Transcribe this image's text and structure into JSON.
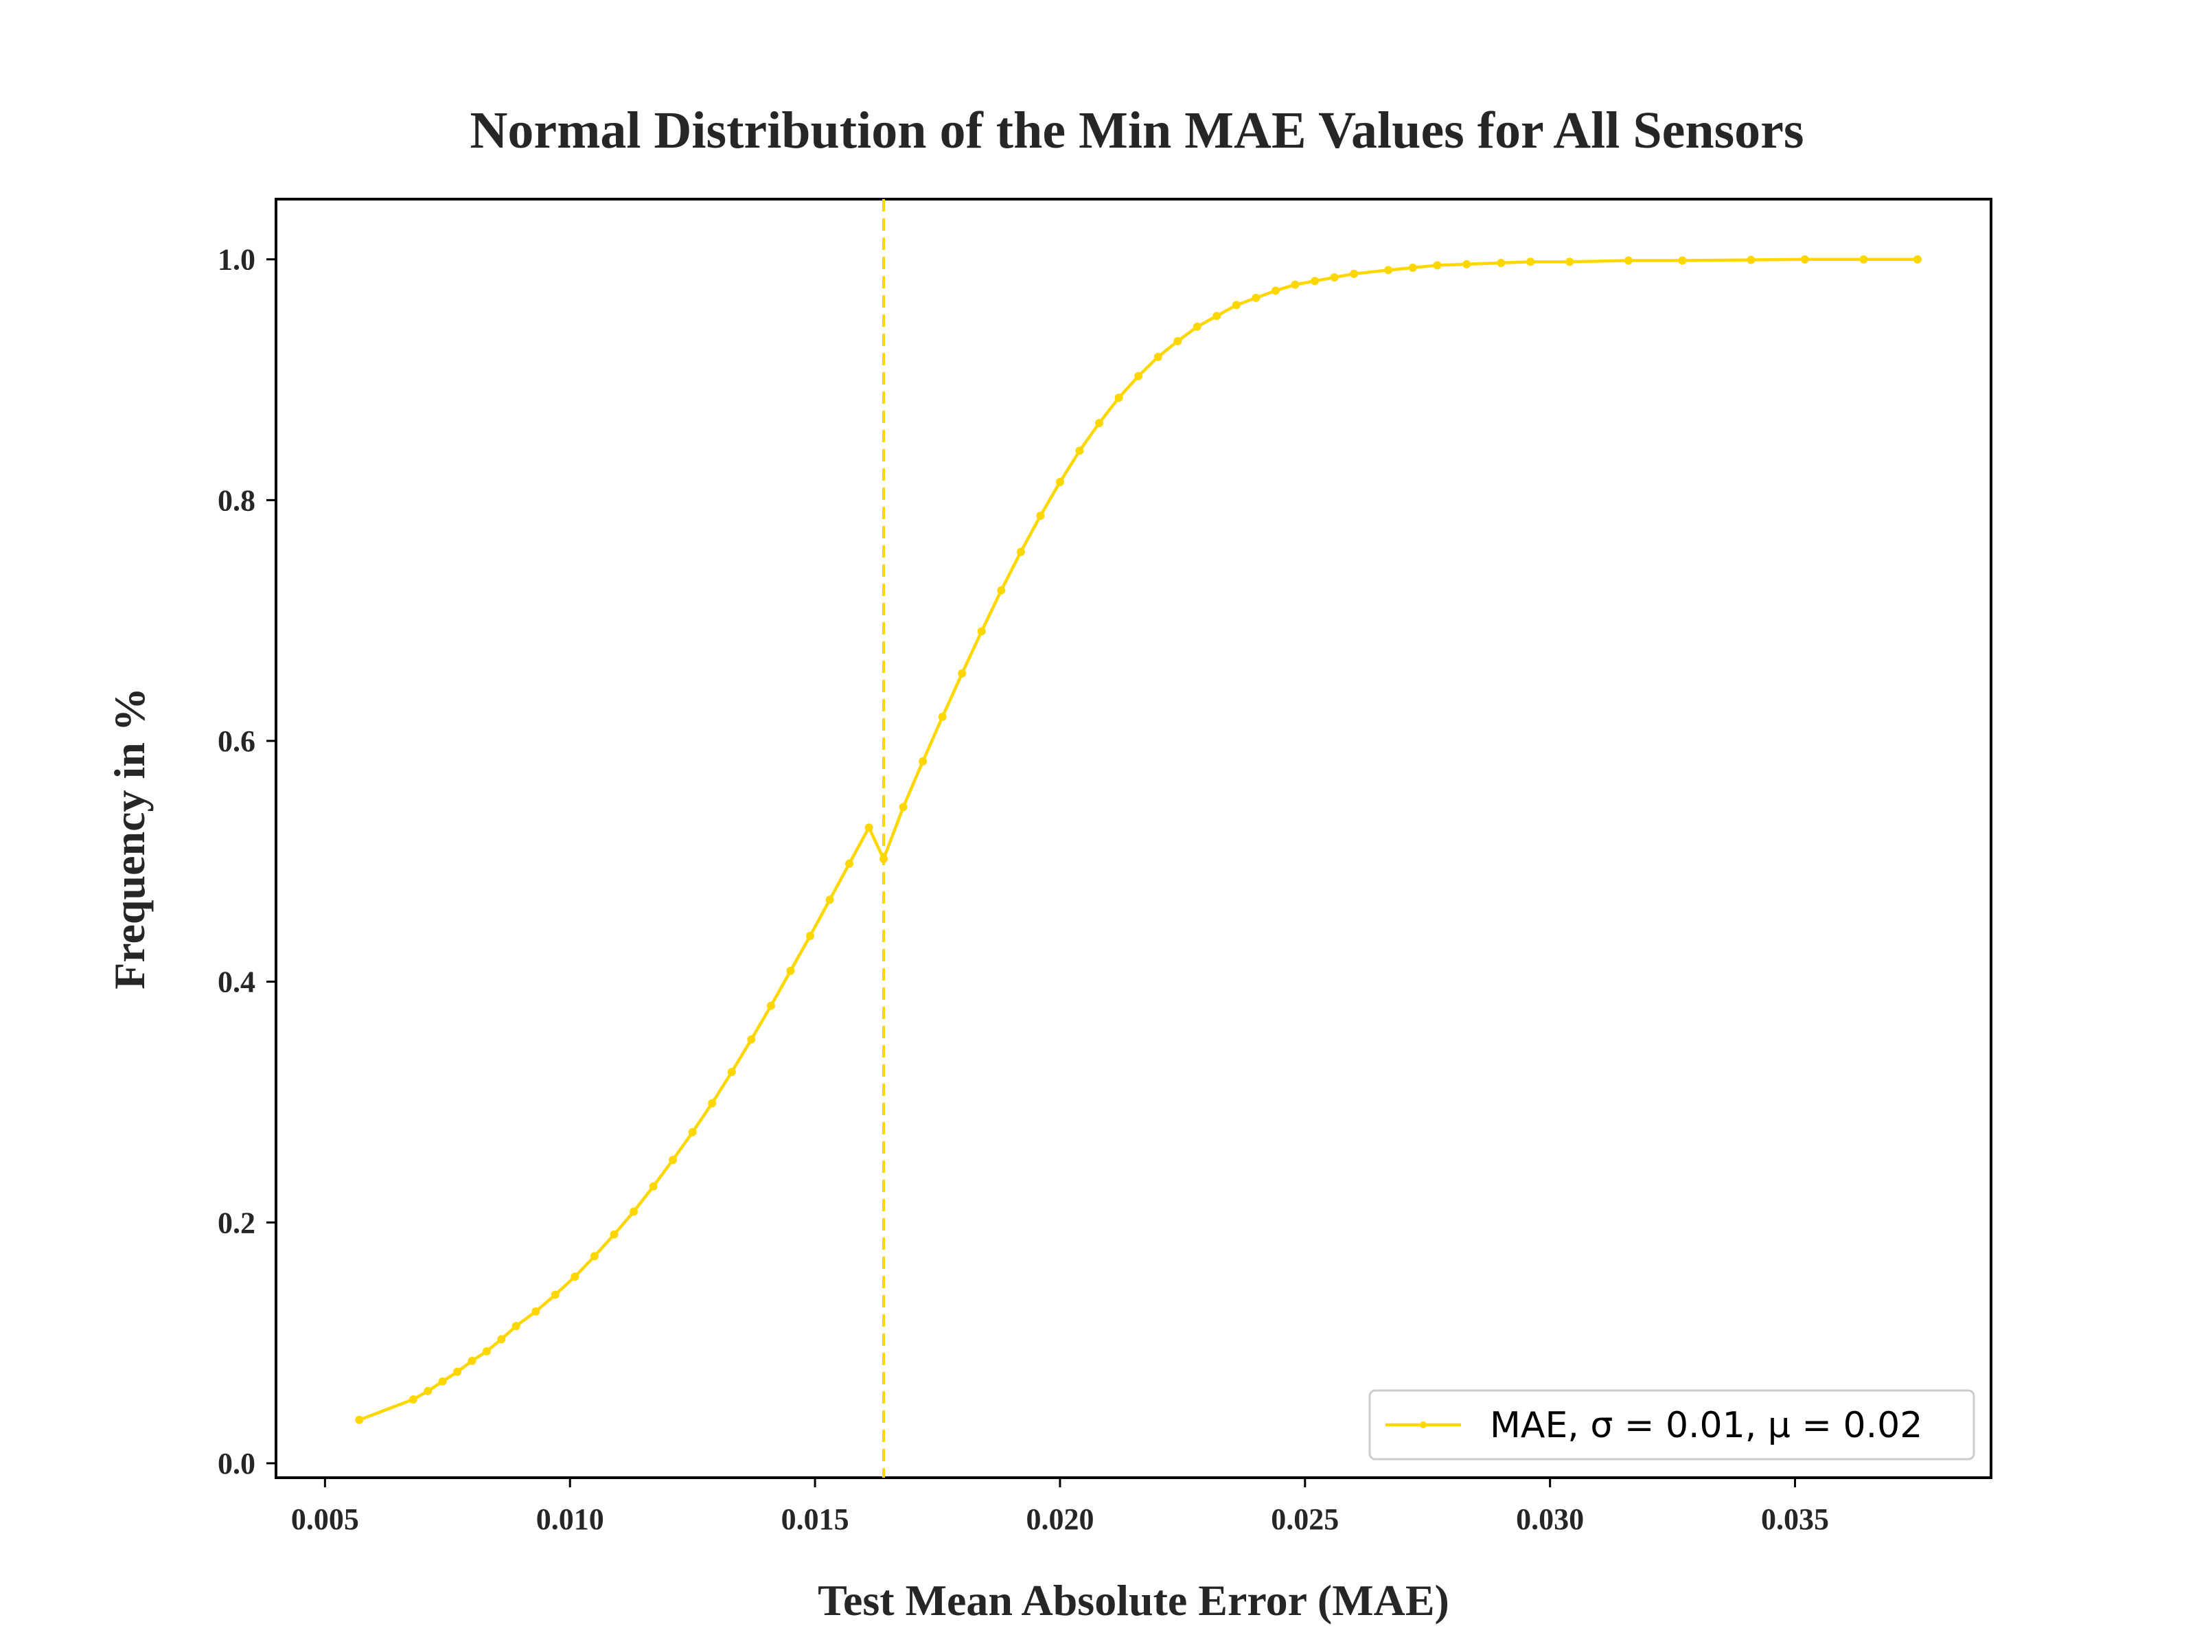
{
  "chart_data": {
    "type": "line",
    "title": "Normal Distribution of the Min MAE Values for All Sensors",
    "xlabel": "Test Mean Absolute Error (MAE)",
    "ylabel": "Frequency in %",
    "xlim": [
      0.004,
      0.039
    ],
    "ylim": [
      -0.012,
      1.05
    ],
    "xticks": [
      0.005,
      0.01,
      0.015,
      0.02,
      0.025,
      0.03,
      0.035
    ],
    "xtick_labels": [
      "0.005",
      "0.010",
      "0.015",
      "0.020",
      "0.025",
      "0.030",
      "0.035"
    ],
    "yticks": [
      0.0,
      0.2,
      0.4,
      0.6,
      0.8,
      1.0
    ],
    "ytick_labels": [
      "0.0",
      "0.2",
      "0.4",
      "0.6",
      "0.8",
      "1.0"
    ],
    "grid": false,
    "legend_position": "lower-right",
    "series": [
      {
        "name": "MAE, σ = 0.01, μ = 0.02",
        "color": "#FFD700",
        "x": [
          0.0057,
          0.0068,
          0.0071,
          0.0074,
          0.0077,
          0.008,
          0.0083,
          0.0086,
          0.0089,
          0.0093,
          0.0097,
          0.0101,
          0.0105,
          0.0109,
          0.0113,
          0.0117,
          0.0121,
          0.0125,
          0.0129,
          0.0133,
          0.0137,
          0.0141,
          0.0145,
          0.0149,
          0.0153,
          0.0157,
          0.0161,
          0.0164,
          0.0168,
          0.0172,
          0.0176,
          0.018,
          0.0184,
          0.0188,
          0.0192,
          0.0196,
          0.02,
          0.0204,
          0.0208,
          0.0212,
          0.0216,
          0.022,
          0.0224,
          0.0228,
          0.0232,
          0.0236,
          0.024,
          0.0244,
          0.0248,
          0.0252,
          0.0256,
          0.026,
          0.0267,
          0.0272,
          0.0277,
          0.0283,
          0.029,
          0.0296,
          0.0304,
          0.0316,
          0.0327,
          0.0341,
          0.0352,
          0.0364,
          0.0375
        ],
        "y": [
          0.036,
          0.053,
          0.06,
          0.068,
          0.076,
          0.085,
          0.093,
          0.103,
          0.114,
          0.126,
          0.14,
          0.155,
          0.172,
          0.19,
          0.209,
          0.23,
          0.252,
          0.275,
          0.299,
          0.325,
          0.352,
          0.38,
          0.409,
          0.438,
          0.468,
          0.498,
          0.528,
          0.502,
          0.545,
          0.583,
          0.62,
          0.656,
          0.691,
          0.725,
          0.757,
          0.787,
          0.815,
          0.841,
          0.864,
          0.885,
          0.903,
          0.919,
          0.932,
          0.944,
          0.953,
          0.962,
          0.968,
          0.974,
          0.979,
          0.982,
          0.985,
          0.988,
          0.991,
          0.993,
          0.995,
          0.996,
          0.997,
          0.998,
          0.998,
          0.999,
          0.999,
          0.9995,
          1.0,
          1.0,
          1.0
        ]
      }
    ],
    "vline": {
      "x": 0.0164,
      "style": "dashed",
      "color": "#FFD700"
    }
  }
}
